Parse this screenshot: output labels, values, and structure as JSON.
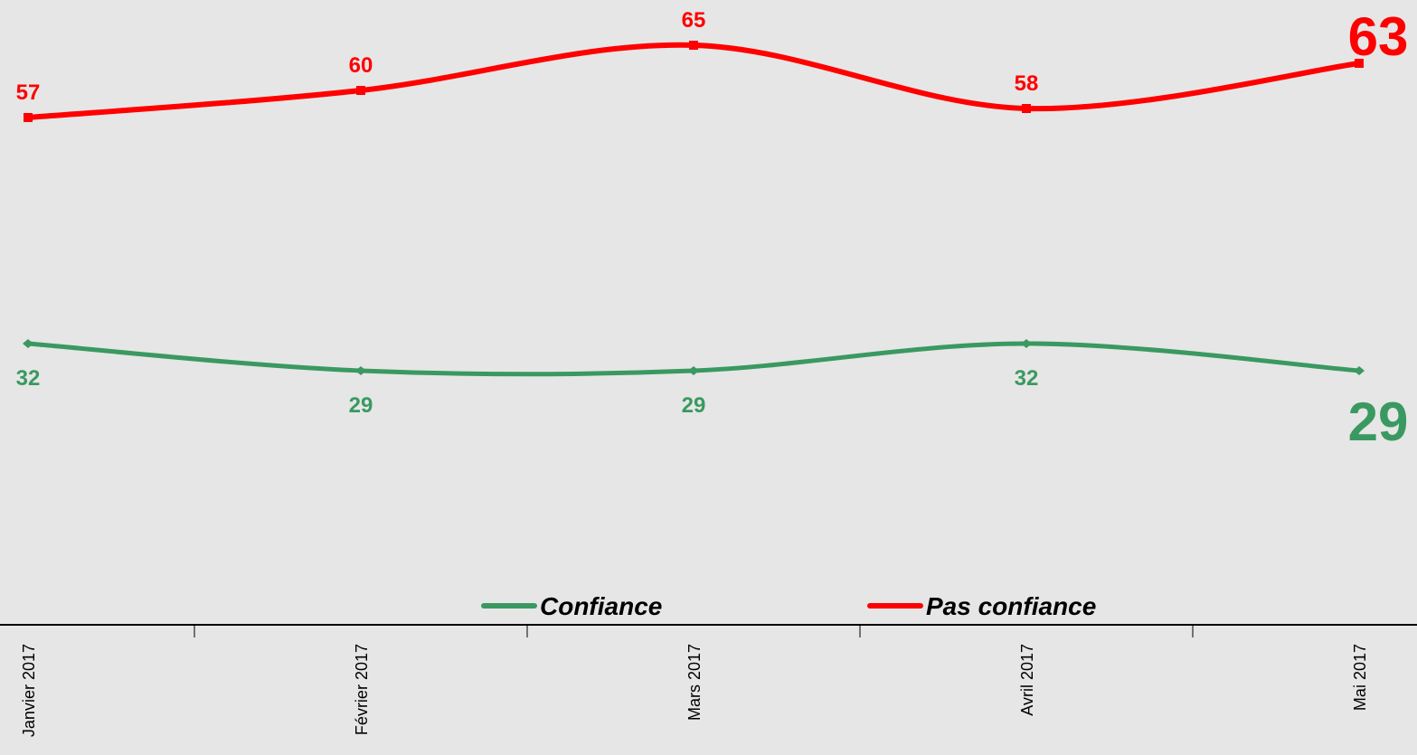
{
  "chart_data": {
    "type": "line",
    "categories": [
      "Janvier 2017",
      "Février 2017",
      "Mars 2017",
      "Avril 2017",
      "Mai 2017"
    ],
    "series": [
      {
        "name": "Confiance",
        "color": "#3a9960",
        "values": [
          32,
          29,
          29,
          32,
          29
        ]
      },
      {
        "name": "Pas confiance",
        "color": "#ff0000",
        "values": [
          57,
          60,
          65,
          58,
          63
        ]
      }
    ],
    "ylim": [
      0,
      70
    ],
    "legend": "bottom"
  }
}
